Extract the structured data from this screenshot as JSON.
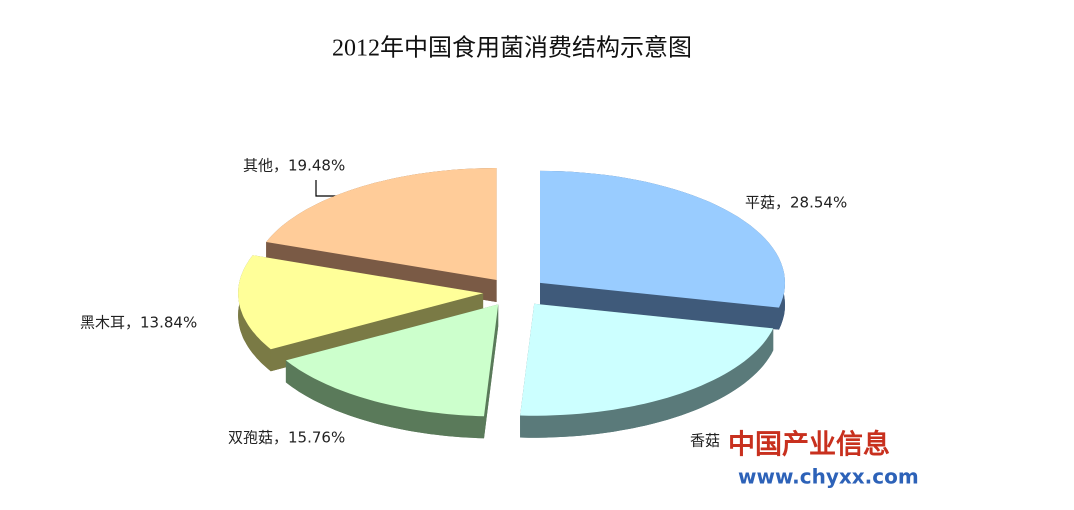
{
  "chart_data": {
    "type": "pie",
    "title": "2012年中国食用菌消费结构示意图",
    "labels": [
      "平菇，28.54%",
      "香菇",
      "双孢菇，15.76%",
      "黑木耳，13.84%",
      "其他，19.48%"
    ],
    "values": [
      28.54,
      22.38,
      15.76,
      13.84,
      19.48
    ],
    "colors": [
      "#99ccff",
      "#ccffff",
      "#ccffcc",
      "#ffff99",
      "#ffcc99"
    ],
    "side_colors": [
      "#3f5a7a",
      "#5a7a7a",
      "#5a7a5a",
      "#7a7a45",
      "#7a5a45"
    ],
    "watermark": [
      "中国产业信息",
      "www.chyxx.com"
    ]
  }
}
